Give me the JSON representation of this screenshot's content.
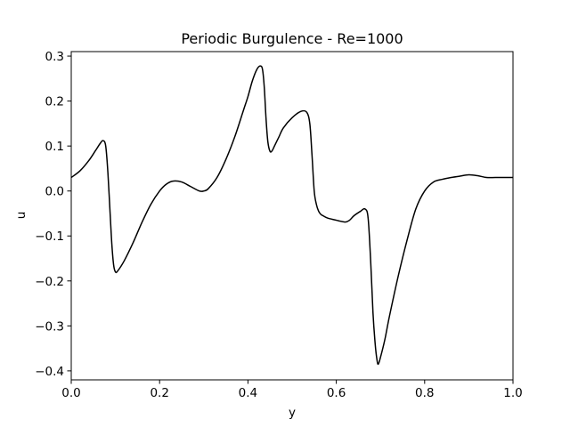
{
  "chart_data": {
    "type": "line",
    "title": "Periodic Burgulence - Re=1000",
    "xlabel": "y",
    "ylabel": "u",
    "xlim": [
      0.0,
      1.0
    ],
    "ylim": [
      -0.42,
      0.31
    ],
    "grid": false,
    "x_ticks": [
      0.0,
      0.2,
      0.4,
      0.6,
      0.8,
      1.0
    ],
    "x_tick_labels": [
      "0.0",
      "0.2",
      "0.4",
      "0.6",
      "0.8",
      "1.0"
    ],
    "y_ticks": [
      -0.4,
      -0.3,
      -0.2,
      -0.1,
      0.0,
      0.1,
      0.2,
      0.3
    ],
    "y_tick_labels": [
      "−0.4",
      "−0.3",
      "−0.2",
      "−0.1",
      "0.0",
      "0.1",
      "0.2",
      "0.3"
    ],
    "line_color": "#000000",
    "series": [
      {
        "x": [
          0.0,
          0.02,
          0.04,
          0.055,
          0.065,
          0.072,
          0.078,
          0.083,
          0.088,
          0.092,
          0.096,
          0.1,
          0.105,
          0.12,
          0.14,
          0.16,
          0.18,
          0.2,
          0.215,
          0.23,
          0.25,
          0.27,
          0.29,
          0.3,
          0.31,
          0.33,
          0.35,
          0.37,
          0.39,
          0.4,
          0.41,
          0.42,
          0.428,
          0.433,
          0.437,
          0.441,
          0.445,
          0.45,
          0.455,
          0.46,
          0.47,
          0.48,
          0.5,
          0.52,
          0.533,
          0.54,
          0.545,
          0.55,
          0.555,
          0.56,
          0.565,
          0.57,
          0.58,
          0.6,
          0.62,
          0.63,
          0.64,
          0.655,
          0.665,
          0.672,
          0.678,
          0.683,
          0.688,
          0.692,
          0.695,
          0.7,
          0.71,
          0.72,
          0.74,
          0.76,
          0.78,
          0.8,
          0.82,
          0.84,
          0.86,
          0.88,
          0.9,
          0.92,
          0.94,
          0.96,
          0.98,
          1.0
        ],
        "y": [
          0.03,
          0.045,
          0.068,
          0.09,
          0.105,
          0.112,
          0.1,
          0.04,
          -0.05,
          -0.12,
          -0.165,
          -0.18,
          -0.178,
          -0.155,
          -0.115,
          -0.07,
          -0.03,
          0.0,
          0.015,
          0.022,
          0.02,
          0.01,
          0.0,
          0.0,
          0.005,
          0.03,
          0.07,
          0.12,
          0.18,
          0.21,
          0.245,
          0.27,
          0.278,
          0.27,
          0.23,
          0.16,
          0.11,
          0.088,
          0.09,
          0.1,
          0.12,
          0.14,
          0.163,
          0.177,
          0.175,
          0.15,
          0.08,
          0.0,
          -0.03,
          -0.045,
          -0.052,
          -0.055,
          -0.06,
          -0.065,
          -0.069,
          -0.065,
          -0.055,
          -0.045,
          -0.04,
          -0.06,
          -0.16,
          -0.27,
          -0.34,
          -0.375,
          -0.385,
          -0.37,
          -0.33,
          -0.28,
          -0.19,
          -0.11,
          -0.04,
          0.0,
          0.02,
          0.026,
          0.03,
          0.033,
          0.036,
          0.034,
          0.03,
          0.03,
          0.03,
          0.03
        ]
      }
    ]
  }
}
